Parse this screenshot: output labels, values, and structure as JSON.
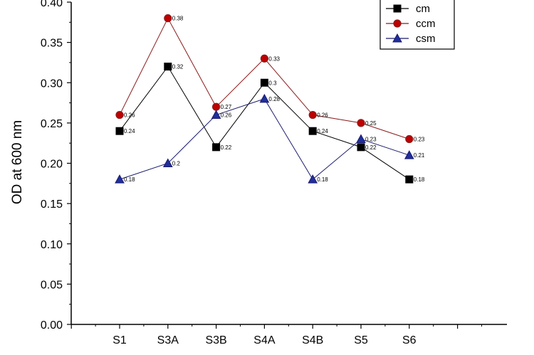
{
  "chart_data": {
    "type": "line",
    "title": "",
    "xlabel": "",
    "ylabel": "OD at 600 nm",
    "categories": [
      "S1",
      "S3A",
      "S3B",
      "S4A",
      "S4B",
      "S5",
      "S6"
    ],
    "ylim": [
      0,
      0.4
    ],
    "yticks": [
      "0.00",
      "0.05",
      "0.10",
      "0.15",
      "0.20",
      "0.25",
      "0.30",
      "0.35",
      "0.40"
    ],
    "grid": false,
    "legend_position": "top-right",
    "series": [
      {
        "name": "cm",
        "marker": "square",
        "color": "#000000",
        "fill": "#000000",
        "values": [
          0.24,
          0.32,
          0.22,
          0.3,
          0.24,
          0.22,
          0.18
        ],
        "labels": [
          "0.24",
          "0.32",
          "0.22",
          "0.3",
          "0.24",
          "0.22",
          "0.18"
        ]
      },
      {
        "name": "ccm",
        "marker": "circle",
        "color": "#8b1a1a",
        "fill": "#c00000",
        "values": [
          0.26,
          0.38,
          0.27,
          0.33,
          0.26,
          0.25,
          0.23
        ],
        "labels": [
          "0.26",
          "0.38",
          "0.27",
          "0.33",
          "0.26",
          "0.25",
          "0.23"
        ]
      },
      {
        "name": "csm",
        "marker": "triangle",
        "color": "#1a1a6e",
        "fill": "#1f2f9c",
        "values": [
          0.18,
          0.2,
          0.26,
          0.28,
          0.18,
          0.23,
          0.21
        ],
        "labels": [
          "0.18",
          "0.2",
          "0.26",
          "0.28",
          "0.18",
          "0.23",
          "0.21"
        ]
      }
    ]
  }
}
